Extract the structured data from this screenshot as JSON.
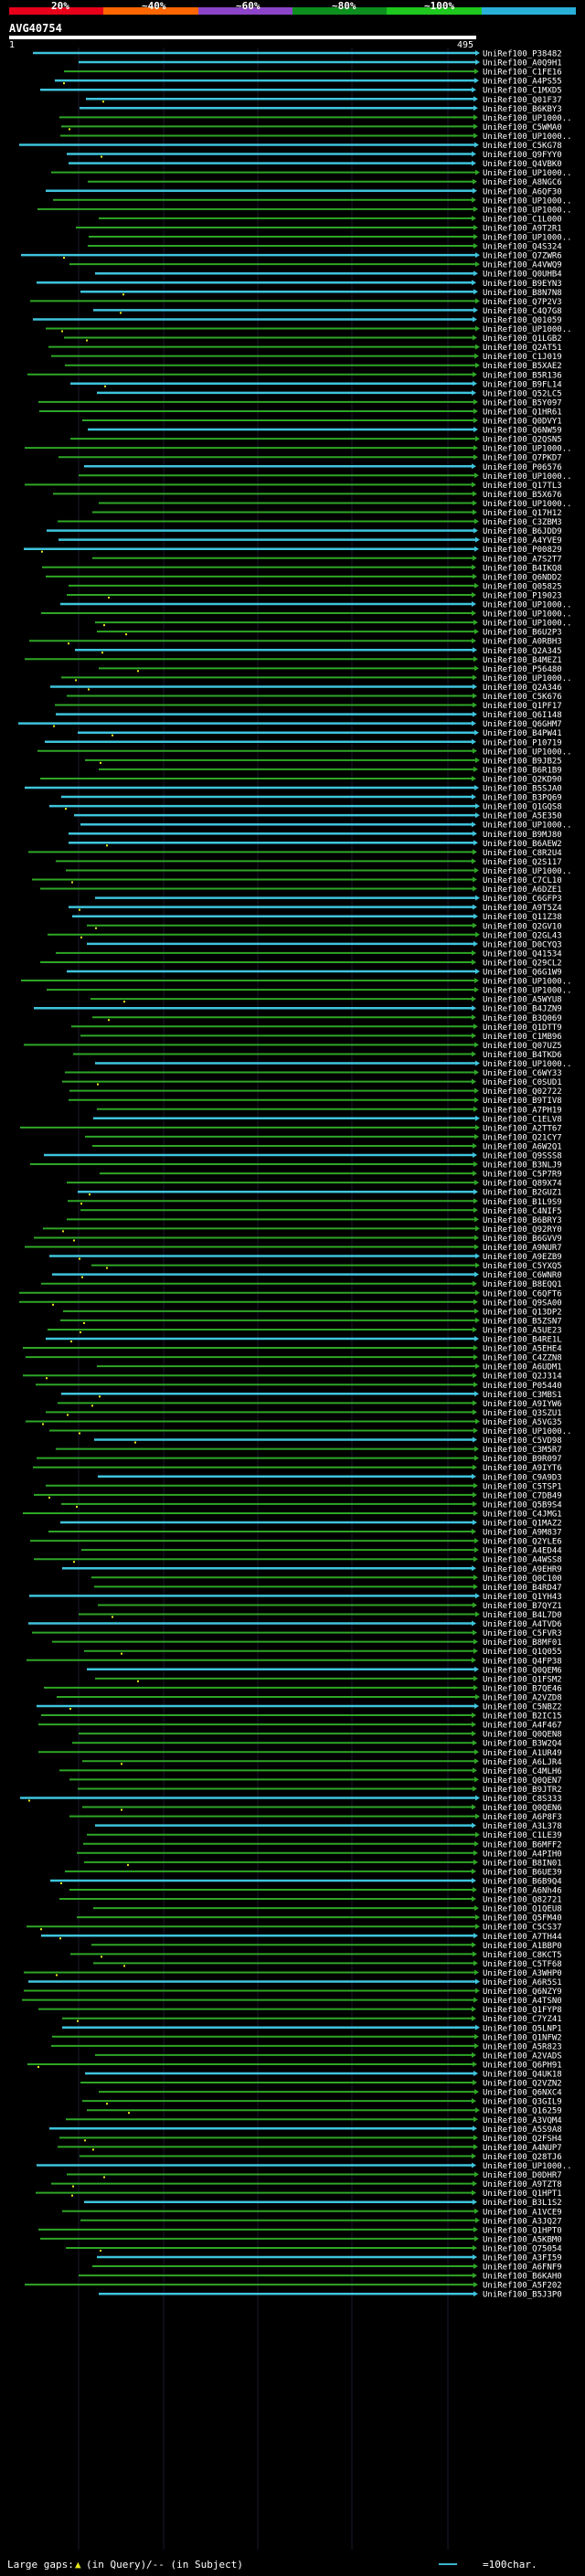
{
  "legend": {
    "labels": [
      "20%",
      "~40%",
      "~60%",
      "~80%",
      "~100%"
    ],
    "colors": [
      "#e8001a",
      "#ff6600",
      "#8b44c8",
      "#0d8f1f",
      "#1ec81e",
      "#29b0d8"
    ]
  },
  "query": {
    "id": "AVG40754",
    "start_label": "1",
    "end_label": "495"
  },
  "colors": {
    "hit_green": "#2ea626",
    "hit_blue": "#3ec4dc",
    "gap_yellow": "#e8e820",
    "text": "#ffffff"
  },
  "footer": {
    "large_gaps_label": "Large gaps:",
    "query_gap_label": "(in Query)",
    "subject_gap_label": "/-- (in Subject)",
    "scale_label": "=100char."
  },
  "hits": [
    "UniRef100_P38482",
    "UniRef100_A0Q9H1",
    "UniRef100_C1FE16",
    "UniRef100_A4PS55",
    "UniRef100_C1MXD5",
    "UniRef100_Q01F37",
    "UniRef100_B6KBY3",
    "UniRef100_UP1000..",
    "UniRef100_C5WMA0",
    "UniRef100_UP1000..",
    "UniRef100_C5KG78",
    "UniRef100_Q9FYY0",
    "UniRef100_Q4VBK0",
    "UniRef100_UP1000..",
    "UniRef100_A8NGC6",
    "UniRef100_A6QF30",
    "UniRef100_UP1000..",
    "UniRef100_UP1000..",
    "UniRef100_C1L000",
    "UniRef100_A9T2R1",
    "UniRef100_UP1000..",
    "UniRef100_Q4S324",
    "UniRef100_Q7ZWR6",
    "UniRef100_A4VWQ9",
    "UniRef100_Q0UHB4",
    "UniRef100_B9EYN3",
    "UniRef100_B8N7N8",
    "UniRef100_Q7P2V3",
    "UniRef100_C4Q7G8",
    "UniRef100_Q01059",
    "UniRef100_UP1000..",
    "UniRef100_Q1LGB2",
    "UniRef100_Q2AT51",
    "UniRef100_C1J019",
    "UniRef100_B5XAE2",
    "UniRef100_B5R136",
    "UniRef100_B9FL14",
    "UniRef100_Q52LC5",
    "UniRef100_B5Y097",
    "UniRef100_Q1HR61",
    "UniRef100_Q0DVY1",
    "UniRef100_Q6NW59",
    "UniRef100_Q2QSN5",
    "UniRef100_UP1000..",
    "UniRef100_Q7PKD7",
    "UniRef100_P06576",
    "UniRef100_UP1000..",
    "UniRef100_Q17TL3",
    "UniRef100_B5X676",
    "UniRef100_UP1000..",
    "UniRef100_Q17H12",
    "UniRef100_C3ZBM3",
    "UniRef100_B6JDD9",
    "UniRef100_A4YVE9",
    "UniRef100_P00829",
    "UniRef100_A7S2T7",
    "UniRef100_B4IKQ8",
    "UniRef100_Q6NDD2",
    "UniRef100_Q05825",
    "UniRef100_P19023",
    "UniRef100_UP1000..",
    "UniRef100_UP1000..",
    "UniRef100_UP1000..",
    "UniRef100_B6U2P3",
    "UniRef100_A0RBH3",
    "UniRef100_Q2A345",
    "UniRef100_B4MEZ1",
    "UniRef100_P56480",
    "UniRef100_UP1000..",
    "UniRef100_Q2A346",
    "UniRef100_C5K676",
    "UniRef100_Q1PF17",
    "UniRef100_Q6I148",
    "UniRef100_Q6GHM7",
    "UniRef100_B4PW41",
    "UniRef100_P10719",
    "UniRef100_UP1000..",
    "UniRef100_B9JB25",
    "UniRef100_B6R1B9",
    "UniRef100_Q2KD90",
    "UniRef100_B5SJA0",
    "UniRef100_B3PQ69",
    "UniRef100_Q1GQS8",
    "UniRef100_A5E350",
    "UniRef100_UP1000..",
    "UniRef100_B9MJ80",
    "UniRef100_B6AEW2",
    "UniRef100_C8R2U4",
    "UniRef100_Q2S117",
    "UniRef100_UP1000..",
    "UniRef100_C7CL10",
    "UniRef100_A6DZE1",
    "UniRef100_C6GFP3",
    "UniRef100_A9T5Z4",
    "UniRef100_Q11Z38",
    "UniRef100_Q2GV10",
    "UniRef100_Q2GL43",
    "UniRef100_D0CYQ3",
    "UniRef100_Q41534",
    "UniRef100_Q29CL2",
    "UniRef100_Q6G1W9",
    "UniRef100_UP1000..",
    "UniRef100_UP1000..",
    "UniRef100_A5WYU8",
    "UniRef100_B4JZN9",
    "UniRef100_B3Q069",
    "UniRef100_Q1DTT9",
    "UniRef100_C1MB96",
    "UniRef100_Q07UZ5",
    "UniRef100_B4TKD6",
    "UniRef100_UP1000..",
    "UniRef100_C6WY33",
    "UniRef100_C0SUD1",
    "UniRef100_Q02722",
    "UniRef100_B9TIV8",
    "UniRef100_A7PH19",
    "UniRef100_C1ELV8",
    "UniRef100_A2TT67",
    "UniRef100_Q21CY7",
    "UniRef100_A6W2Q1",
    "UniRef100_Q9SSS8",
    "UniRef100_B3NLJ9",
    "UniRef100_C5P7R9",
    "UniRef100_Q89X74",
    "UniRef100_B2GUZ1",
    "UniRef100_B1L9S9",
    "UniRef100_C4NIF5",
    "UniRef100_B6BRY3",
    "UniRef100_Q92RY0",
    "UniRef100_B6GVV9",
    "UniRef100_A9NUR7",
    "UniRef100_A9EZB9",
    "UniRef100_C5YXQ5",
    "UniRef100_C6WNR0",
    "UniRef100_B8EQQ1",
    "UniRef100_C6QFT6",
    "UniRef100_Q9SA00",
    "UniRef100_Q13DP2",
    "UniRef100_B5ZSN7",
    "UniRef100_A5UE23",
    "UniRef100_B4RE1L",
    "UniRef100_A5EHE4",
    "UniRef100_C4ZZN8",
    "UniRef100_A6UDM1",
    "UniRef100_Q2J314",
    "UniRef100_P05440",
    "UniRef100_C3MBS1",
    "UniRef100_A9IYW6",
    "UniRef100_Q3SZU1",
    "UniRef100_A5VG35",
    "UniRef100_UP1000..",
    "UniRef100_C5VD98",
    "UniRef100_C3M5R7",
    "UniRef100_B9R097",
    "UniRef100_A9IYT6",
    "UniRef100_C9A9D3",
    "UniRef100_C5TSP1",
    "UniRef100_C7DB49",
    "UniRef100_Q5B9S4",
    "UniRef100_C4JMG1",
    "UniRef100_Q1MAZ2",
    "UniRef100_A9M837",
    "UniRef100_Q2YLE6",
    "UniRef100_A4ED44",
    "UniRef100_A4WSS8",
    "UniRef100_A9EHR9",
    "UniRef100_Q0C100",
    "UniRef100_B4RD47",
    "UniRef100_Q1YH43",
    "UniRef100_B7QYZ1",
    "UniRef100_B4L7D0",
    "UniRef100_A4TVD6",
    "UniRef100_C5FVR3",
    "UniRef100_B8MF01",
    "UniRef100_Q1Q055",
    "UniRef100_Q4FP38",
    "UniRef100_Q0QEM6",
    "UniRef100_Q1FSM2",
    "UniRef100_B7QE46",
    "UniRef100_A2VZD8",
    "UniRef100_C5NBZ2",
    "UniRef100_B2IC15",
    "UniRef100_A4F467",
    "UniRef100_Q0QEN8",
    "UniRef100_B3W2Q4",
    "UniRef100_A1UR49",
    "UniRef100_A6LJR4",
    "UniRef100_C4MLH6",
    "UniRef100_Q0QEN7",
    "UniRef100_B9JTR2",
    "UniRef100_C8S333",
    "UniRef100_Q0QEN6",
    "UniRef100_A6P8F3",
    "UniRef100_A3L378",
    "UniRef100_C1LE39",
    "UniRef100_B6MFF2",
    "UniRef100_A4PIH0",
    "UniRef100_B8IN01",
    "UniRef100_B6UE39",
    "UniRef100_B6B9Q4",
    "UniRef100_A6Nh46",
    "UniRef100_Q82721",
    "UniRef100_Q1QEU8",
    "UniRef100_Q5FM40",
    "UniRef100_C5CS37",
    "UniRef100_A7TH44",
    "UniRef100_A1BBP0",
    "UniRef100_C8KCT5",
    "UniRef100_C5TF68",
    "UniRef100_A3WHP0",
    "UniRef100_A6R5S1",
    "UniRef100_Q6NZY9",
    "UniRef100_A4TSN0",
    "UniRef100_Q1FYP8",
    "UniRef100_C7YZ41",
    "UniRef100_Q5LNP1",
    "UniRef100_Q1NFW2",
    "UniRef100_A5R823",
    "UniRef100_A2VADS",
    "UniRef100_Q6PH91",
    "UniRef100_Q4UK18",
    "UniRef100_Q2VZN2",
    "UniRef100_Q6NXC4",
    "UniRef100_Q3GIL9",
    "UniRef100_Q16259",
    "UniRef100_A3VQM4",
    "UniRef100_A5S9A8",
    "UniRef100_Q2FSH4",
    "UniRef100_A4NUP7",
    "UniRef100_Q28TJ6",
    "UniRef100_UP1000..",
    "UniRef100_D0DHR7",
    "UniRef100_A9TZT8",
    "UniRef100_Q1HPT1",
    "UniRef100_B3L1S2",
    "UniRef100_A1VCE9",
    "UniRef100_A3JQ27",
    "UniRef100_Q1HPT0",
    "UniRef100_A5KBM0",
    "UniRef100_Q75054",
    "UniRef100_A3FI59",
    "UniRef100_A6FNF9",
    "UniRef100_B6KAH0",
    "UniRef100_A5F202",
    "UniRef100_B5J3P0"
  ]
}
